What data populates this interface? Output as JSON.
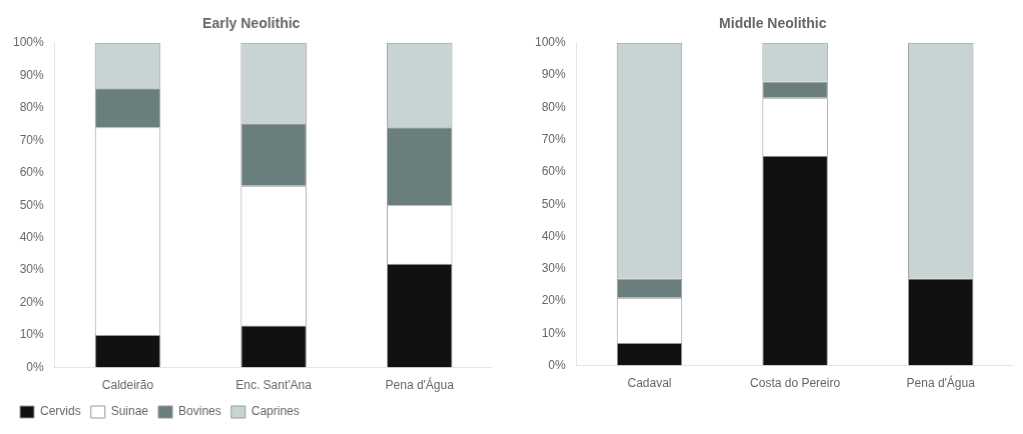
{
  "chart_data": [
    {
      "type": "bar",
      "title": "Early Neolithic",
      "stacked": true,
      "grid": false,
      "legend": "lower left",
      "categories": [
        "Caldeirão",
        "Enc. Sant'Ana",
        "Pena d'Água"
      ],
      "series": [
        {
          "name": "Cervids",
          "color": "#111111",
          "values": [
            0.1,
            0.13,
            0.32
          ]
        },
        {
          "name": "Suinae",
          "color": "#ffffff",
          "values": [
            0.64,
            0.43,
            0.18
          ]
        },
        {
          "name": "Bovines",
          "color": "#6b7e7e",
          "values": [
            0.12,
            0.19,
            0.24
          ]
        },
        {
          "name": "Caprines",
          "color": "#c8d4d4",
          "values": [
            0.14,
            0.25,
            0.26
          ]
        }
      ],
      "ylim": [
        0,
        1.0
      ],
      "yticks": [
        {
          "value": 0,
          "label": "0%"
        },
        {
          "value": 0.1,
          "label": "10%"
        },
        {
          "value": 0.2,
          "label": "20%"
        },
        {
          "value": 0.3,
          "label": "30%"
        },
        {
          "value": 0.4,
          "label": "40%"
        },
        {
          "value": 0.5,
          "label": "50%"
        },
        {
          "value": 0.6,
          "label": "60%"
        },
        {
          "value": 0.7,
          "label": "70%"
        },
        {
          "value": 0.8,
          "label": "80%"
        },
        {
          "value": 0.9,
          "label": "90%"
        },
        {
          "value": 1.0,
          "label": "100%"
        }
      ]
    },
    {
      "type": "bar",
      "title": "Middle Neolithic",
      "stacked": true,
      "grid": false,
      "categories": [
        "Cadaval",
        "Costa do Pereiro",
        "Pena d'Água"
      ],
      "series": [
        {
          "name": "Cervids",
          "color": "#111111",
          "values": [
            0.07,
            0.65,
            0.27
          ]
        },
        {
          "name": "Suinae",
          "color": "#ffffff",
          "values": [
            0.14,
            0.18,
            0.0
          ]
        },
        {
          "name": "Bovines",
          "color": "#6b7e7e",
          "values": [
            0.06,
            0.05,
            0.0
          ]
        },
        {
          "name": "Caprines",
          "color": "#c8d4d4",
          "values": [
            0.73,
            0.12,
            0.73
          ]
        }
      ],
      "ylim": [
        0,
        1.0
      ],
      "yticks": [
        {
          "value": 0,
          "label": "0%"
        },
        {
          "value": 0.1,
          "label": "10%"
        },
        {
          "value": 0.2,
          "label": "20%"
        },
        {
          "value": 0.3,
          "label": "30%"
        },
        {
          "value": 0.4,
          "label": "40%"
        },
        {
          "value": 0.5,
          "label": "50%"
        },
        {
          "value": 0.6,
          "label": "60%"
        },
        {
          "value": 0.7,
          "label": "70%"
        },
        {
          "value": 0.8,
          "label": "80%"
        },
        {
          "value": 0.9,
          "label": "90%"
        },
        {
          "value": 1.0,
          "label": "100%"
        }
      ]
    }
  ]
}
